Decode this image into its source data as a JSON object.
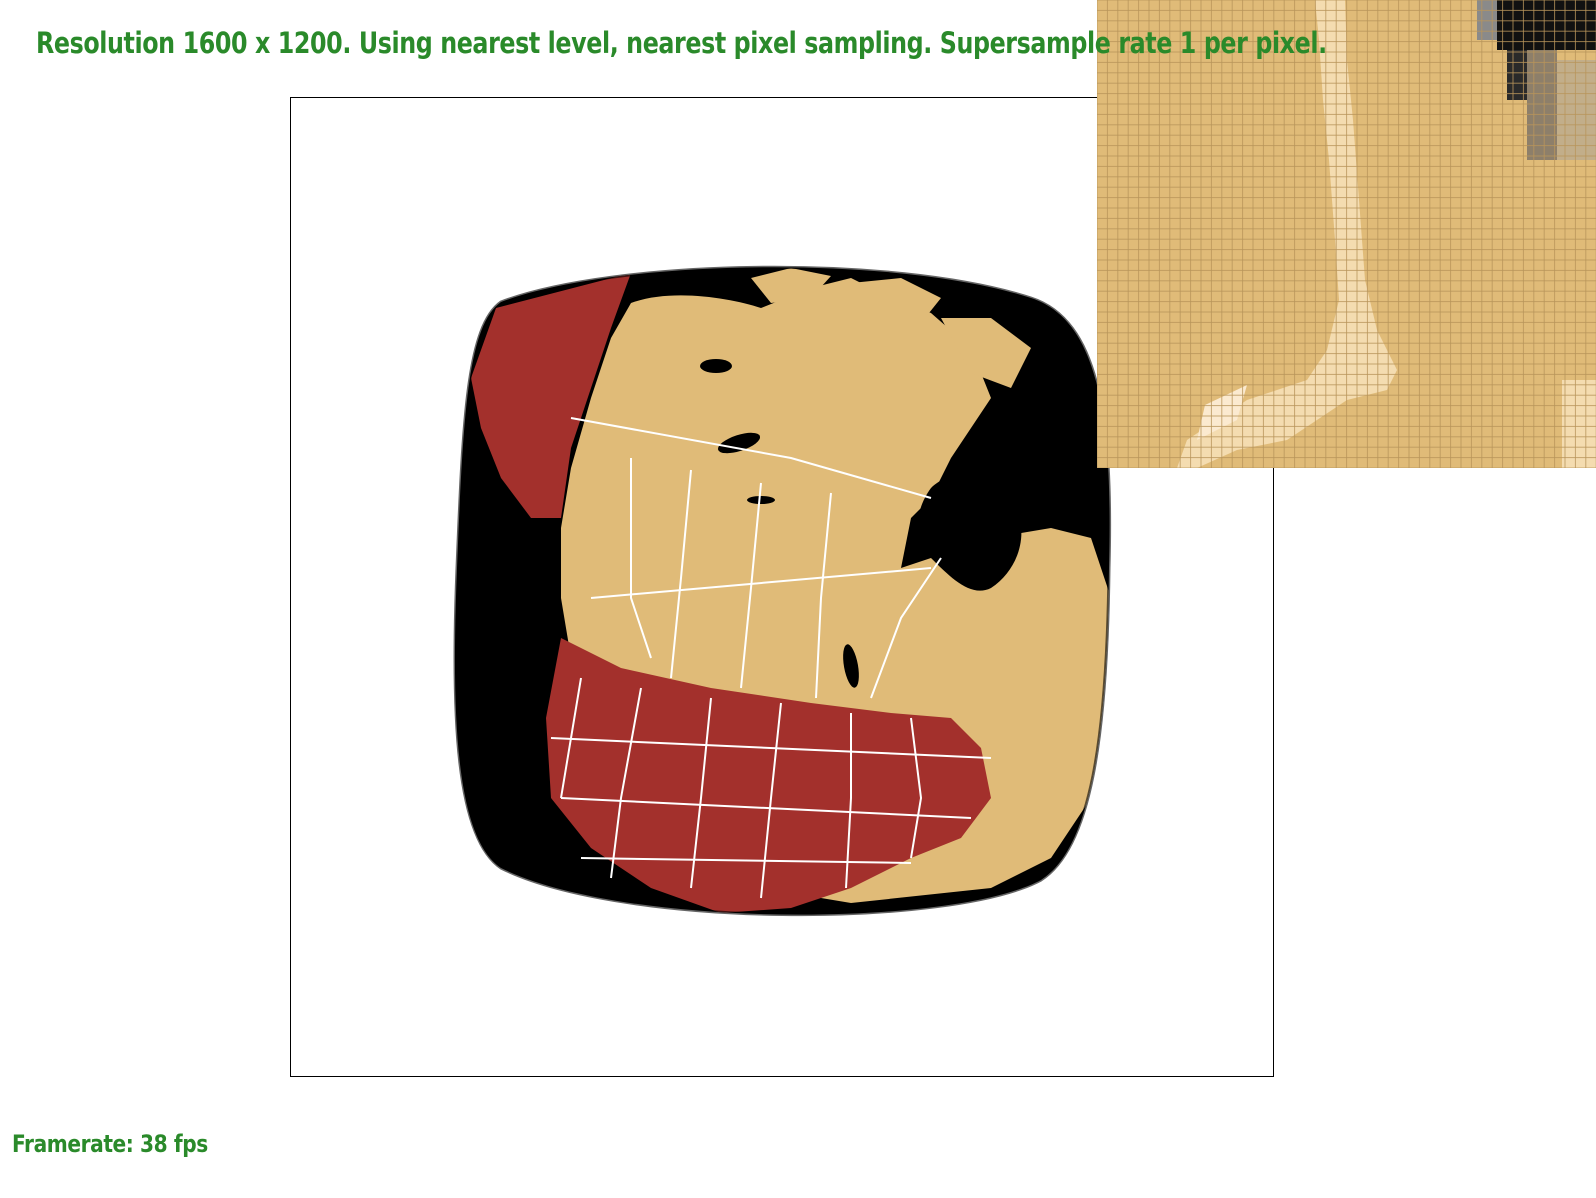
{
  "status": {
    "text": "Resolution 1600 x 1200. Using nearest level, nearest pixel sampling. Supersample rate 1 per pixel."
  },
  "framerate": {
    "text": "Framerate: 38 fps"
  },
  "colors": {
    "text_green": "#2a8a2a",
    "land_tan": "#e0bb78",
    "usa_red": "#a3302c",
    "ocean_black": "#000000",
    "border_white": "#ffffff",
    "zoom_grid": "#b8955a",
    "zoom_highlight": "#f4dcb0"
  },
  "icons": {
    "viewport": "textured-warped-square-map",
    "zoom": "pixel-inspector-grid"
  }
}
